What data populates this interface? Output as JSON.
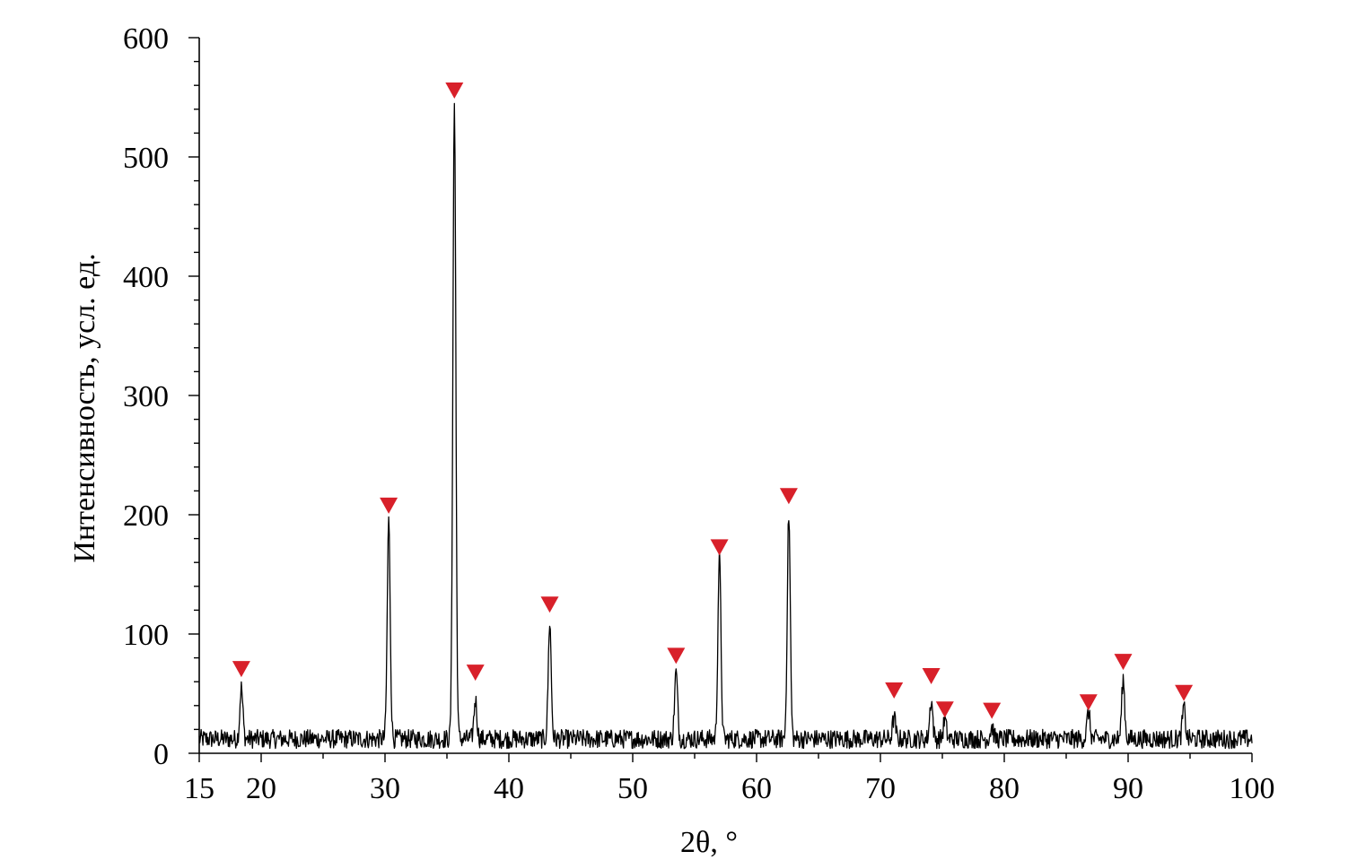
{
  "chart_data": {
    "type": "line",
    "title": "",
    "xlabel": "2θ, °",
    "ylabel": "Интенсивность, усл. ед.",
    "xlim": [
      15,
      100
    ],
    "ylim": [
      0,
      600
    ],
    "x_ticks": [
      15,
      20,
      30,
      40,
      50,
      60,
      70,
      80,
      90,
      100
    ],
    "x_tick_labels": [
      "15",
      "20",
      "30",
      "40",
      "50",
      "60",
      "70",
      "80",
      "90",
      "100"
    ],
    "y_ticks": [
      0,
      100,
      200,
      300,
      400,
      500,
      600
    ],
    "y_tick_labels": [
      "0",
      "100",
      "200",
      "300",
      "400",
      "500",
      "600"
    ],
    "grid": false,
    "legend": "none",
    "baseline": 12,
    "noise_amplitude": 8,
    "peaks": [
      {
        "x": 18.4,
        "y": 55
      },
      {
        "x": 30.3,
        "y": 195
      },
      {
        "x": 35.6,
        "y": 545
      },
      {
        "x": 37.3,
        "y": 45
      },
      {
        "x": 43.3,
        "y": 110
      },
      {
        "x": 53.5,
        "y": 68
      },
      {
        "x": 57.0,
        "y": 165
      },
      {
        "x": 62.6,
        "y": 200
      },
      {
        "x": 71.1,
        "y": 30
      },
      {
        "x": 74.1,
        "y": 45
      },
      {
        "x": 75.2,
        "y": 28
      },
      {
        "x": 79.0,
        "y": 22
      },
      {
        "x": 86.8,
        "y": 35
      },
      {
        "x": 89.6,
        "y": 62
      },
      {
        "x": 94.5,
        "y": 38
      }
    ],
    "markers": [
      {
        "x": 18.4,
        "y": 71
      },
      {
        "x": 30.3,
        "y": 208
      },
      {
        "x": 35.6,
        "y": 556
      },
      {
        "x": 37.3,
        "y": 68
      },
      {
        "x": 43.3,
        "y": 125
      },
      {
        "x": 53.5,
        "y": 82
      },
      {
        "x": 57.0,
        "y": 173
      },
      {
        "x": 62.6,
        "y": 216
      },
      {
        "x": 71.1,
        "y": 53
      },
      {
        "x": 74.1,
        "y": 65
      },
      {
        "x": 75.2,
        "y": 37
      },
      {
        "x": 79.0,
        "y": 36
      },
      {
        "x": 86.8,
        "y": 43
      },
      {
        "x": 89.6,
        "y": 77
      },
      {
        "x": 94.5,
        "y": 51
      }
    ],
    "series_color": "#000000",
    "marker_color": "#d8202a",
    "marker_shape": "down-triangle"
  }
}
